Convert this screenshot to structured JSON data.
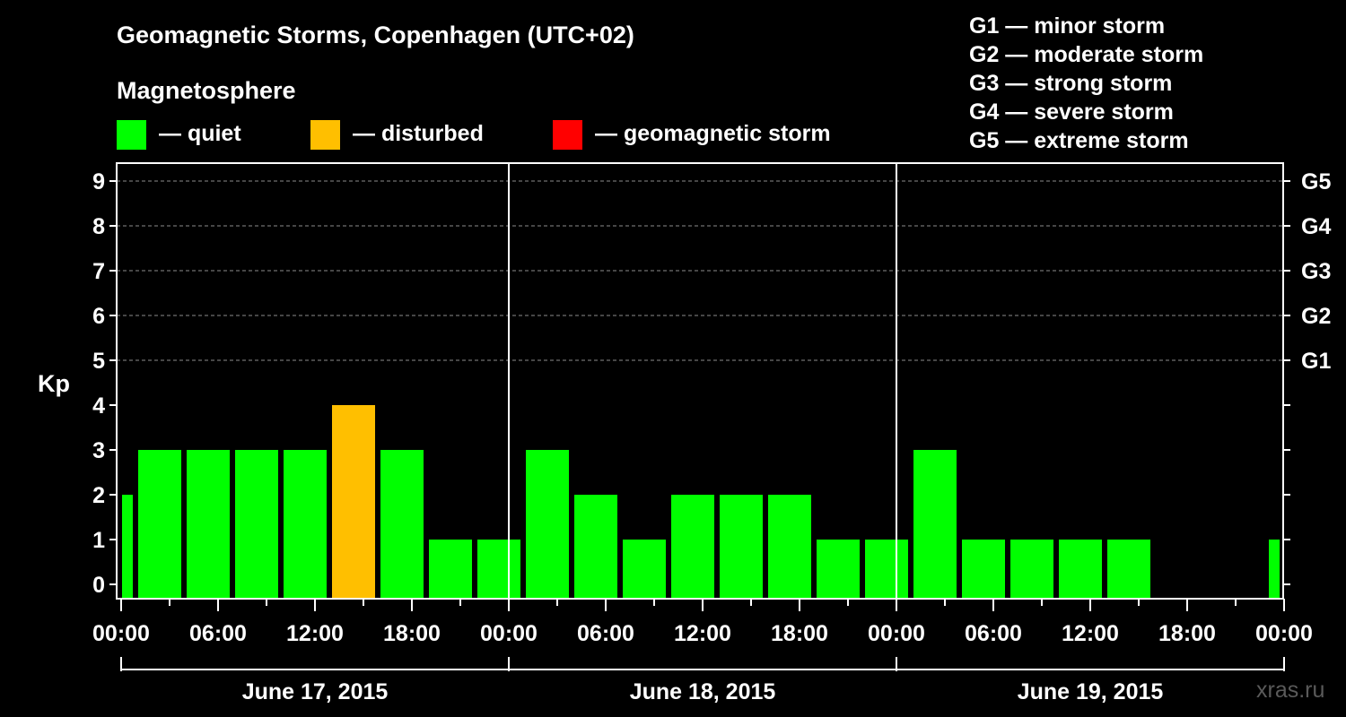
{
  "chart_data": {
    "type": "bar",
    "title": "Geomagnetic Storms, Copenhagen (UTC+02)",
    "legend": {
      "heading": "Magnetosphere",
      "items": [
        {
          "label": "— quiet",
          "color": "#00ff00"
        },
        {
          "label": "— disturbed",
          "color": "#ffbf00"
        },
        {
          "label": "— geomagnetic storm",
          "color": "#ff0000"
        }
      ]
    },
    "storm_scale": [
      "G1 — minor storm",
      "G2 — moderate storm",
      "G3 — strong storm",
      "G4 — severe storm",
      "G5 — extreme storm"
    ],
    "ylabel": "Kp",
    "ylim": [
      0,
      9
    ],
    "y_ticks": [
      "0",
      "1",
      "2",
      "3",
      "4",
      "5",
      "6",
      "7",
      "8",
      "9"
    ],
    "right_ticks": [
      {
        "kp": 5,
        "label": "G1"
      },
      {
        "kp": 6,
        "label": "G2"
      },
      {
        "kp": 7,
        "label": "G3"
      },
      {
        "kp": 8,
        "label": "G4"
      },
      {
        "kp": 9,
        "label": "G5"
      }
    ],
    "x_tick_labels": [
      "00:00",
      "06:00",
      "12:00",
      "18:00",
      "00:00",
      "06:00",
      "12:00",
      "18:00",
      "00:00",
      "06:00",
      "12:00",
      "18:00",
      "00:00"
    ],
    "days": [
      "June 17, 2015",
      "June 18, 2015",
      "June 19, 2015"
    ],
    "grid": "dashed horizontal at Kp 5-9",
    "bars": [
      {
        "start_hour": 0,
        "end_hour": 1,
        "kp": 2,
        "level": "quiet"
      },
      {
        "start_hour": 1,
        "end_hour": 4,
        "kp": 3,
        "level": "quiet"
      },
      {
        "start_hour": 4,
        "end_hour": 7,
        "kp": 3,
        "level": "quiet"
      },
      {
        "start_hour": 7,
        "end_hour": 10,
        "kp": 3,
        "level": "quiet"
      },
      {
        "start_hour": 10,
        "end_hour": 13,
        "kp": 3,
        "level": "quiet"
      },
      {
        "start_hour": 13,
        "end_hour": 16,
        "kp": 4,
        "level": "disturbed"
      },
      {
        "start_hour": 16,
        "end_hour": 19,
        "kp": 3,
        "level": "quiet"
      },
      {
        "start_hour": 19,
        "end_hour": 22,
        "kp": 1,
        "level": "quiet"
      },
      {
        "start_hour": 22,
        "end_hour": 25,
        "kp": 1,
        "level": "quiet"
      },
      {
        "start_hour": 25,
        "end_hour": 28,
        "kp": 3,
        "level": "quiet"
      },
      {
        "start_hour": 28,
        "end_hour": 31,
        "kp": 2,
        "level": "quiet"
      },
      {
        "start_hour": 31,
        "end_hour": 34,
        "kp": 1,
        "level": "quiet"
      },
      {
        "start_hour": 34,
        "end_hour": 37,
        "kp": 2,
        "level": "quiet"
      },
      {
        "start_hour": 37,
        "end_hour": 40,
        "kp": 2,
        "level": "quiet"
      },
      {
        "start_hour": 40,
        "end_hour": 43,
        "kp": 2,
        "level": "quiet"
      },
      {
        "start_hour": 43,
        "end_hour": 46,
        "kp": 1,
        "level": "quiet"
      },
      {
        "start_hour": 46,
        "end_hour": 49,
        "kp": 1,
        "level": "quiet"
      },
      {
        "start_hour": 49,
        "end_hour": 52,
        "kp": 3,
        "level": "quiet"
      },
      {
        "start_hour": 52,
        "end_hour": 55,
        "kp": 1,
        "level": "quiet"
      },
      {
        "start_hour": 55,
        "end_hour": 58,
        "kp": 1,
        "level": "quiet"
      },
      {
        "start_hour": 58,
        "end_hour": 61,
        "kp": 1,
        "level": "quiet"
      },
      {
        "start_hour": 61,
        "end_hour": 64,
        "kp": 1,
        "level": "quiet"
      },
      {
        "start_hour": 71,
        "end_hour": 72,
        "kp": 1,
        "level": "quiet"
      }
    ],
    "watermark": "xras.ru"
  }
}
